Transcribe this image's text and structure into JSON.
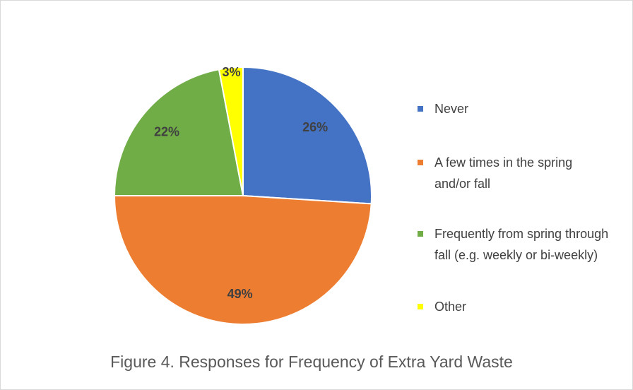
{
  "chart_data": {
    "type": "pie",
    "title": "Figure 4. Responses for Frequency of Extra Yard Waste",
    "categories": [
      "Never",
      "A few times in the spring and/or fall",
      "Frequently from spring through fall (e.g. weekly or bi-weekly)",
      "Other"
    ],
    "values": [
      26,
      49,
      22,
      3
    ],
    "value_labels": [
      "26%",
      "49%",
      "22%",
      "3%"
    ],
    "colors": [
      "#4472c4",
      "#ed7d31",
      "#70ad47",
      "#ffff00"
    ],
    "legend": "right"
  }
}
